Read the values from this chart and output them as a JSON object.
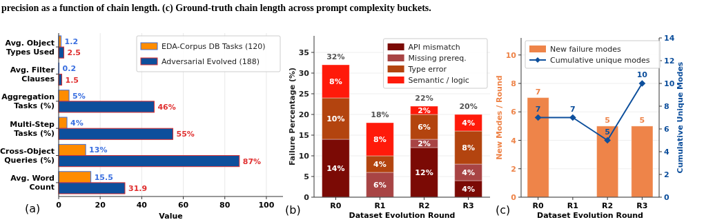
{
  "chart_data": [
    {
      "type": "bar",
      "orientation": "horizontal",
      "categories": [
        "Avg. Object Types Used",
        "Avg. Filter Clauses",
        "Aggregation Tasks (%)",
        "Multi-Step Tasks (%)",
        "Cross-Object Queries (%)",
        "Avg. Word Count"
      ],
      "series": [
        {
          "name": "EDA-Corpus DB Tasks (120)",
          "color": "#ff8c00",
          "values": [
            1.2,
            0.2,
            5,
            4,
            13,
            15.5
          ],
          "value_labels": [
            "1.2",
            "0.2",
            "5%",
            "4%",
            "13%",
            "15.5"
          ]
        },
        {
          "name": "Adversarial Evolved (188)",
          "color": "#0d4f9c",
          "values": [
            2.5,
            1.5,
            46,
            55,
            87,
            31.9
          ],
          "value_labels": [
            "2.5",
            "1.5",
            "46%",
            "55%",
            "87%",
            "31.9"
          ]
        }
      ],
      "xlim": [
        0,
        108
      ],
      "xticks": [
        0,
        20,
        40,
        60,
        80,
        100
      ],
      "xlabel": "Value",
      "grid": "x",
      "legend": "top right",
      "annotations": [
        "precision as a function of chain length. (c) Ground-truth chain length across prompt complexity buckets.",
        "(a)"
      ]
    },
    {
      "type": "bar",
      "stacked": true,
      "categories": [
        "R0",
        "R1",
        "R2",
        "R3"
      ],
      "series": [
        {
          "name": "API mismatch",
          "color": "#7b0a05",
          "values": [
            14,
            0,
            12,
            4
          ],
          "value_labels": [
            "14%",
            null,
            "12%",
            "4%"
          ]
        },
        {
          "name": "Missing prereq.",
          "color": "#a84444",
          "values": [
            0,
            6,
            2,
            4
          ],
          "value_labels": [
            null,
            "6%",
            "2%",
            "4%"
          ]
        },
        {
          "name": "Type error",
          "color": "#b3440f",
          "values": [
            10,
            4,
            6,
            8
          ],
          "value_labels": [
            "10%",
            "4%",
            "6%",
            "8%"
          ]
        },
        {
          "name": "Semantic / logic",
          "color": "#ff1a0a",
          "values": [
            8,
            8,
            2,
            4
          ],
          "value_labels": [
            "8%",
            "8%",
            "2%",
            "4%"
          ]
        }
      ],
      "totals": [
        "32%",
        "18%",
        "22%",
        "20%"
      ],
      "ylim": [
        0,
        39
      ],
      "yticks": [
        0,
        5,
        10,
        15,
        20,
        25,
        30,
        35
      ],
      "xlabel": "Dataset Evolution Round",
      "ylabel": "Failure Percentage (%)",
      "grid": "y",
      "legend": "top right",
      "annotations": [
        "(b)"
      ]
    },
    {
      "type": "bar",
      "categories": [
        "R0",
        "R1",
        "R2",
        "R3"
      ],
      "series": [
        {
          "name": "New failure modes",
          "color": "#ee8449",
          "values": [
            7,
            null,
            5,
            5
          ]
        },
        {
          "name": "Cumulative unique modes",
          "type": "line",
          "axis": "y2",
          "color": "#0d4f9c",
          "marker": "diamond",
          "values": [
            7,
            7,
            5,
            10
          ]
        }
      ],
      "ylim": [
        0,
        11.2
      ],
      "yticks": [
        0,
        2,
        4,
        6,
        8,
        10
      ],
      "y2lim": [
        0,
        14
      ],
      "y2ticks": [
        0,
        2,
        4,
        6,
        8,
        10,
        12,
        14
      ],
      "xlabel": "Dataset Evolution Round",
      "ylabel": "New Modes / Round",
      "y2label": "Cumulative Unique Modes",
      "grid": "y",
      "legend": "top left",
      "data_labels": true,
      "annotations": [
        "(c)"
      ]
    }
  ]
}
